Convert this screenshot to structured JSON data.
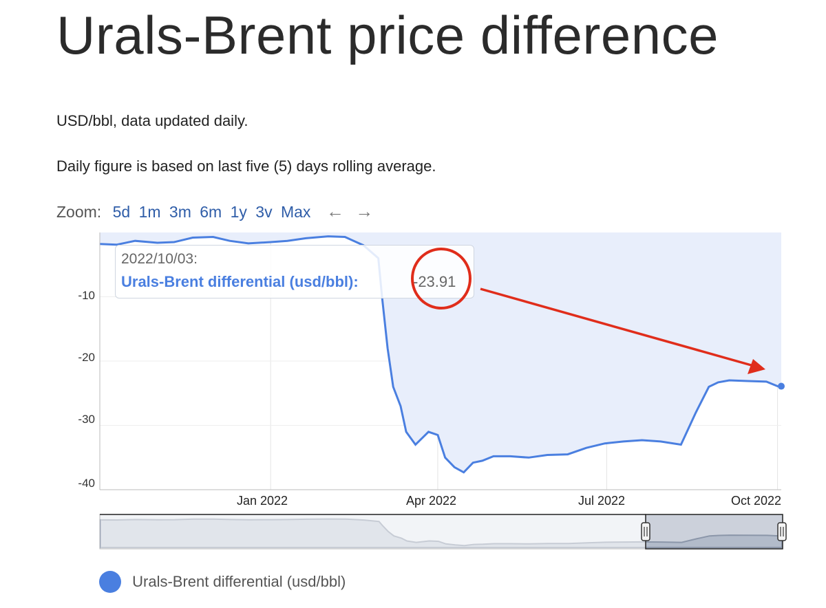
{
  "page": {
    "title": "Urals-Brent price difference",
    "subtitle_1": "USD/bbl, data updated daily.",
    "subtitle_2": "Daily figure is based on last five (5) days rolling average."
  },
  "zoom": {
    "label": "Zoom:",
    "options": [
      "5d",
      "1m",
      "3m",
      "6m",
      "1y",
      "3v",
      "Max"
    ],
    "back_icon": "arrow-left-icon",
    "forward_icon": "arrow-right-icon"
  },
  "tooltip": {
    "date": "2022/10/03:",
    "series": "Urals-Brent differential (usd/bbl):",
    "value": "-23.91"
  },
  "legend": {
    "label": "Urals-Brent differential (usd/bbl)",
    "color": "#4a7fe0"
  },
  "colors": {
    "line": "#4a7fe0",
    "fill": "#e8eefb",
    "annotation": "#e02d1b"
  },
  "chart_data": {
    "type": "area",
    "series": [
      {
        "name": "Urals-Brent differential (usd/bbl)",
        "x": [
          "2021-10-01",
          "2021-10-10",
          "2021-10-20",
          "2021-11-01",
          "2021-11-10",
          "2021-11-20",
          "2021-12-01",
          "2021-12-10",
          "2021-12-20",
          "2022-01-01",
          "2022-01-10",
          "2022-01-20",
          "2022-02-01",
          "2022-02-10",
          "2022-02-20",
          "2022-02-28",
          "2022-03-02",
          "2022-03-05",
          "2022-03-08",
          "2022-03-12",
          "2022-03-15",
          "2022-03-20",
          "2022-03-27",
          "2022-04-01",
          "2022-04-05",
          "2022-04-10",
          "2022-04-15",
          "2022-04-20",
          "2022-04-25",
          "2022-05-01",
          "2022-05-10",
          "2022-05-20",
          "2022-05-30",
          "2022-06-10",
          "2022-06-20",
          "2022-06-30",
          "2022-07-10",
          "2022-07-20",
          "2022-07-30",
          "2022-08-10",
          "2022-08-18",
          "2022-08-25",
          "2022-08-30",
          "2022-09-05",
          "2022-09-15",
          "2022-09-25",
          "2022-10-01",
          "2022-10-03"
        ],
        "y": [
          -1.8,
          -1.9,
          -1.3,
          -1.6,
          -1.5,
          -0.8,
          -0.7,
          -1.3,
          -1.7,
          -1.5,
          -1.3,
          -0.9,
          -0.6,
          -0.7,
          -2.0,
          -4.0,
          -10,
          -18,
          -24,
          -27,
          -31,
          -33,
          -31,
          -31.5,
          -35,
          -36.5,
          -37.3,
          -35.8,
          -35.5,
          -34.8,
          -34.8,
          -35,
          -34.6,
          -34.5,
          -33.5,
          -32.8,
          -32.5,
          -32.3,
          -32.5,
          -33,
          -28,
          -24,
          -23.3,
          -23.0,
          -23.1,
          -23.2,
          -23.9,
          -23.91
        ]
      }
    ],
    "x_ticks": [
      "Jan 2022",
      "Apr 2022",
      "Jul 2022",
      "Oct 2022"
    ],
    "x_tick_dates": [
      "2022-01-01",
      "2022-04-01",
      "2022-07-01",
      "2022-10-01"
    ],
    "y_ticks": [
      -10,
      -20,
      -30,
      -40
    ],
    "y_tick_labels": [
      "-10",
      "-20",
      "-30",
      "-40"
    ],
    "xlim": [
      "2021-10-01",
      "2022-10-03"
    ],
    "ylim": [
      -40,
      0
    ],
    "grid": true,
    "legend_position": "bottom-left"
  }
}
